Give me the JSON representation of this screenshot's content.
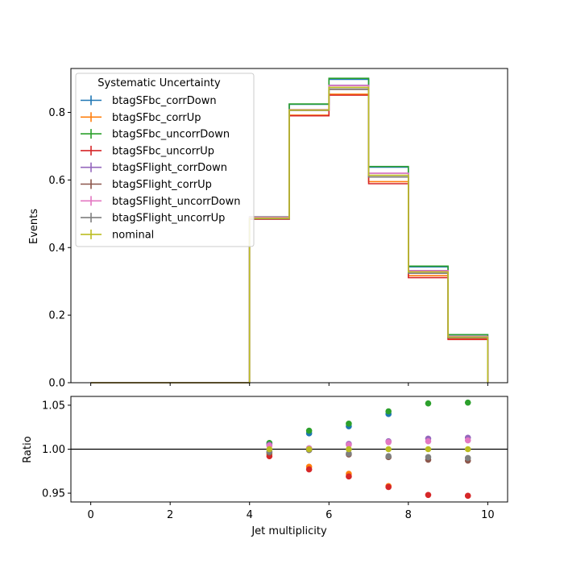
{
  "chart_data": [
    {
      "type": "line",
      "drawstyle": "steps",
      "ylabel": "Events",
      "xlim": [
        -0.5,
        10.5
      ],
      "ylim": [
        0,
        0.93
      ],
      "yticks": [
        0.0,
        0.2,
        0.4,
        0.6,
        0.8
      ],
      "ytick_labels": [
        "0.0",
        "0.2",
        "0.4",
        "0.6",
        "0.8"
      ],
      "bin_edges": [
        0,
        1,
        2,
        3,
        4,
        5,
        6,
        7,
        8,
        9,
        10
      ],
      "legend": {
        "title": "Systematic Uncertainty",
        "position": "upper-left"
      },
      "series": [
        {
          "name": "btagSFbc_corrDown",
          "color": "#1f77b4",
          "values": [
            0,
            0,
            0,
            0,
            0.49,
            0.824,
            0.898,
            0.638,
            0.343,
            0.142
          ]
        },
        {
          "name": "btagSFbc_corrUp",
          "color": "#ff7f0e",
          "values": [
            0,
            0,
            0,
            0,
            0.485,
            0.792,
            0.854,
            0.595,
            0.317,
            0.13
          ]
        },
        {
          "name": "btagSFbc_uncorrDown",
          "color": "#2ca02c",
          "values": [
            0,
            0,
            0,
            0,
            0.491,
            0.825,
            0.901,
            0.64,
            0.345,
            0.142
          ]
        },
        {
          "name": "btagSFbc_uncorrUp",
          "color": "#d62728",
          "values": [
            0,
            0,
            0,
            0,
            0.484,
            0.79,
            0.851,
            0.589,
            0.311,
            0.128
          ]
        },
        {
          "name": "btagSFlight_corrDown",
          "color": "#9467bd",
          "values": [
            0,
            0,
            0,
            0,
            0.49,
            0.808,
            0.88,
            0.62,
            0.332,
            0.137
          ]
        },
        {
          "name": "btagSFlight_corrUp",
          "color": "#8c564b",
          "values": [
            0,
            0,
            0,
            0,
            0.485,
            0.806,
            0.868,
            0.609,
            0.324,
            0.133
          ]
        },
        {
          "name": "btagSFlight_uncorrDown",
          "color": "#e377c2",
          "values": [
            0,
            0,
            0,
            0,
            0.49,
            0.808,
            0.879,
            0.62,
            0.331,
            0.137
          ]
        },
        {
          "name": "btagSFlight_uncorrUp",
          "color": "#7f7f7f",
          "values": [
            0,
            0,
            0,
            0,
            0.486,
            0.806,
            0.869,
            0.609,
            0.324,
            0.133
          ]
        },
        {
          "name": "nominal",
          "color": "#bcbd22",
          "values": [
            0,
            0,
            0,
            0,
            0.487,
            0.807,
            0.874,
            0.614,
            0.328,
            0.135
          ]
        }
      ]
    },
    {
      "type": "scatter",
      "xlabel": "Jet multiplicity",
      "ylabel": "Ratio",
      "xlim": [
        -0.5,
        10.5
      ],
      "ylim": [
        0.94,
        1.06
      ],
      "reference_line": 1.0,
      "xticks": [
        0,
        2,
        4,
        6,
        8,
        10
      ],
      "xtick_labels": [
        "0",
        "2",
        "4",
        "6",
        "8",
        "10"
      ],
      "yticks": [
        0.95,
        1.0,
        1.05
      ],
      "ytick_labels": [
        "0.95",
        "1.00",
        "1.05"
      ],
      "x": [
        4.5,
        5.5,
        6.5,
        7.5,
        8.5,
        9.5
      ],
      "series": [
        {
          "name": "btagSFbc_corrDown",
          "color": "#1f77b4",
          "values": [
            1.006,
            1.018,
            1.026,
            1.04,
            null,
            null
          ]
        },
        {
          "name": "btagSFbc_corrUp",
          "color": "#ff7f0e",
          "values": [
            0.994,
            0.98,
            0.972,
            0.958,
            null,
            null
          ]
        },
        {
          "name": "btagSFbc_uncorrDown",
          "color": "#2ca02c",
          "values": [
            1.007,
            1.021,
            1.029,
            1.043,
            1.052,
            1.053
          ]
        },
        {
          "name": "btagSFbc_uncorrUp",
          "color": "#d62728",
          "values": [
            0.992,
            0.977,
            0.969,
            0.957,
            0.948,
            0.947
          ]
        },
        {
          "name": "btagSFlight_corrDown",
          "color": "#9467bd",
          "values": [
            1.005,
            1.001,
            1.006,
            1.009,
            1.012,
            1.013
          ]
        },
        {
          "name": "btagSFlight_corrUp",
          "color": "#8c564b",
          "values": [
            0.996,
            0.999,
            0.994,
            0.991,
            0.988,
            0.987
          ]
        },
        {
          "name": "btagSFlight_uncorrDown",
          "color": "#e377c2",
          "values": [
            1.004,
            1.001,
            1.005,
            1.008,
            1.009,
            1.01
          ]
        },
        {
          "name": "btagSFlight_uncorrUp",
          "color": "#7f7f7f",
          "values": [
            0.997,
            0.999,
            0.995,
            0.992,
            0.991,
            0.99
          ]
        },
        {
          "name": "nominal",
          "color": "#bcbd22",
          "values": [
            1.0,
            1.0,
            1.0,
            1.0,
            1.0,
            1.0
          ]
        }
      ]
    }
  ]
}
